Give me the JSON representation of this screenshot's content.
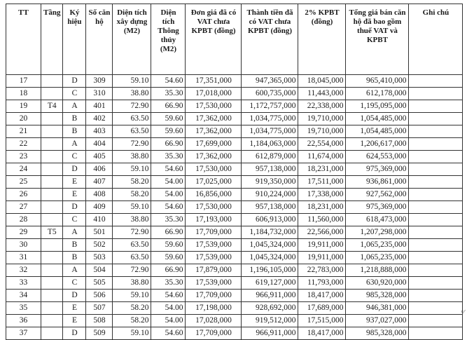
{
  "headers": [
    "TT",
    "Tầng",
    "Ký hiệu",
    "Số căn hộ",
    "Diện tích xây dựng (M2)",
    "Diện tích Thông thủy (M2)",
    "Đơn giá đã có VAT chưa KPBT (đồng)",
    "Thành tiền đã có VAT chưa KPBT (đồng)",
    "2% KPBT (đồng)",
    "Tổng giá bán căn hộ đã bao gồm thuế VAT và KPBT",
    "Ghi chú"
  ],
  "rows": [
    [
      "17",
      "",
      "D",
      "309",
      "59.10",
      "54.60",
      "17,351,000",
      "947,365,000",
      "18,045,000",
      "965,410,000",
      ""
    ],
    [
      "18",
      "",
      "C",
      "310",
      "38.80",
      "35.30",
      "17,018,000",
      "600,735,000",
      "11,443,000",
      "612,178,000",
      ""
    ],
    [
      "19",
      "T4",
      "A",
      "401",
      "72.90",
      "66.90",
      "17,530,000",
      "1,172,757,000",
      "22,338,000",
      "1,195,095,000",
      ""
    ],
    [
      "20",
      "",
      "B",
      "402",
      "63.50",
      "59.60",
      "17,362,000",
      "1,034,775,000",
      "19,710,000",
      "1,054,485,000",
      ""
    ],
    [
      "21",
      "",
      "B",
      "403",
      "63.50",
      "59.60",
      "17,362,000",
      "1,034,775,000",
      "19,710,000",
      "1,054,485,000",
      ""
    ],
    [
      "22",
      "",
      "A",
      "404",
      "72.90",
      "66.90",
      "17,699,000",
      "1,184,063,000",
      "22,554,000",
      "1,206,617,000",
      ""
    ],
    [
      "23",
      "",
      "C",
      "405",
      "38.80",
      "35.30",
      "17,362,000",
      "612,879,000",
      "11,674,000",
      "624,553,000",
      ""
    ],
    [
      "24",
      "",
      "D",
      "406",
      "59.10",
      "54.60",
      "17,530,000",
      "957,138,000",
      "18,231,000",
      "975,369,000",
      ""
    ],
    [
      "25",
      "",
      "E",
      "407",
      "58.20",
      "54.00",
      "17,025,000",
      "919,350,000",
      "17,511,000",
      "936,861,000",
      ""
    ],
    [
      "26",
      "",
      "E",
      "408",
      "58.20",
      "54.00",
      "16,856,000",
      "910,224,000",
      "17,338,000",
      "927,562,000",
      ""
    ],
    [
      "27",
      "",
      "D",
      "409",
      "59.10",
      "54.60",
      "17,530,000",
      "957,138,000",
      "18,231,000",
      "975,369,000",
      ""
    ],
    [
      "28",
      "",
      "C",
      "410",
      "38.80",
      "35.30",
      "17,193,000",
      "606,913,000",
      "11,560,000",
      "618,473,000",
      ""
    ],
    [
      "29",
      "T5",
      "A",
      "501",
      "72.90",
      "66.90",
      "17,709,000",
      "1,184,732,000",
      "22,566,000",
      "1,207,298,000",
      ""
    ],
    [
      "30",
      "",
      "B",
      "502",
      "63.50",
      "59.60",
      "17,539,000",
      "1,045,324,000",
      "19,911,000",
      "1,065,235,000",
      ""
    ],
    [
      "31",
      "",
      "B",
      "503",
      "63.50",
      "59.60",
      "17,539,000",
      "1,045,324,000",
      "19,911,000",
      "1,065,235,000",
      ""
    ],
    [
      "32",
      "",
      "A",
      "504",
      "72.90",
      "66.90",
      "17,879,000",
      "1,196,105,000",
      "22,783,000",
      "1,218,888,000",
      ""
    ],
    [
      "33",
      "",
      "C",
      "505",
      "38.80",
      "35.30",
      "17,539,000",
      "619,127,000",
      "11,793,000",
      "630,920,000",
      ""
    ],
    [
      "34",
      "",
      "D",
      "506",
      "59.10",
      "54.60",
      "17,709,000",
      "966,911,000",
      "18,417,000",
      "985,328,000",
      ""
    ],
    [
      "35",
      "",
      "E",
      "507",
      "58.20",
      "54.00",
      "17,198,000",
      "928,692,000",
      "17,689,000",
      "946,381,000",
      ""
    ],
    [
      "36",
      "",
      "E",
      "508",
      "58.20",
      "54.00",
      "17,028,000",
      "919,512,000",
      "17,515,000",
      "937,027,000",
      ""
    ],
    [
      "37",
      "",
      "D",
      "509",
      "59.10",
      "54.60",
      "17,709,000",
      "966,911,000",
      "18,417,000",
      "985,328,000",
      ""
    ]
  ]
}
